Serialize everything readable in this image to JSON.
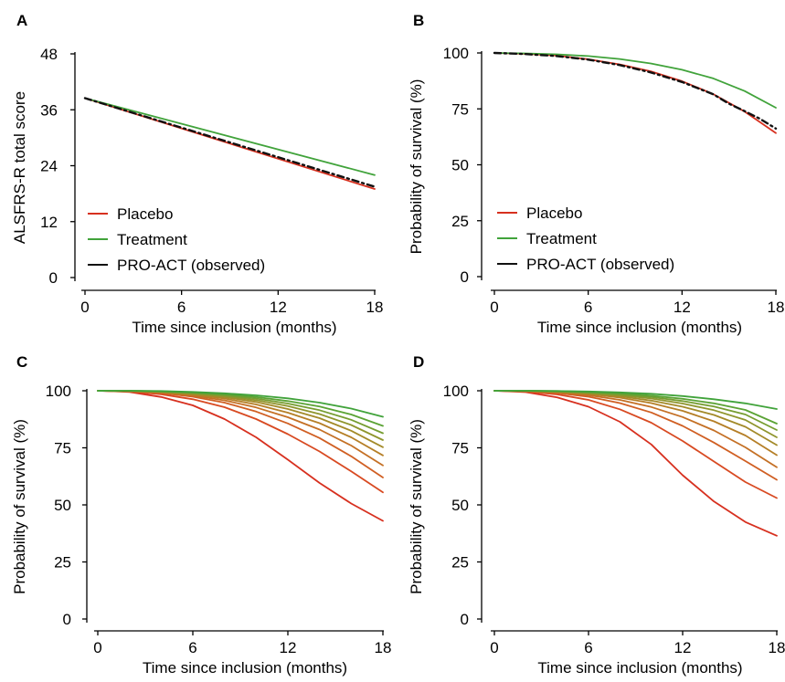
{
  "chart_data": [
    {
      "panel": "A",
      "type": "line",
      "xlabel": "Time since inclusion (months)",
      "ylabel": "ALSFRS-R total score",
      "xlim": [
        0,
        18
      ],
      "ylim": [
        0,
        48
      ],
      "xticks": [
        0,
        6,
        12,
        18
      ],
      "yticks": [
        0,
        12,
        24,
        36,
        48
      ],
      "legend": "bottom-left",
      "series": [
        {
          "name": "Placebo",
          "color": "#d7301f",
          "dash": "",
          "x": [
            0,
            18
          ],
          "y": [
            38.5,
            19.0
          ]
        },
        {
          "name": "Treatment",
          "color": "#41a33b",
          "dash": "",
          "x": [
            0,
            18
          ],
          "y": [
            38.5,
            22.0
          ]
        },
        {
          "name": "PRO-ACT (observed)",
          "color": "#111111",
          "dash": "7 4 2 4",
          "x": [
            0,
            18
          ],
          "y": [
            38.5,
            19.5
          ]
        }
      ]
    },
    {
      "panel": "B",
      "type": "line",
      "xlabel": "Time since inclusion (months)",
      "ylabel": "Probability of survival (%)",
      "xlim": [
        0,
        18
      ],
      "ylim": [
        0,
        100
      ],
      "xticks": [
        0,
        6,
        12,
        18
      ],
      "yticks": [
        0,
        25,
        50,
        75,
        100
      ],
      "legend": "bottom-left",
      "series": [
        {
          "name": "Placebo",
          "color": "#d7301f",
          "dash": "",
          "x": [
            0,
            2,
            4,
            6,
            8,
            10,
            12,
            14,
            16,
            18
          ],
          "y": [
            100,
            99.6,
            98.8,
            97.2,
            94.9,
            91.8,
            87.4,
            81.6,
            73.8,
            64.2
          ]
        },
        {
          "name": "Treatment",
          "color": "#41a33b",
          "dash": "",
          "x": [
            0,
            2,
            4,
            6,
            8,
            10,
            12,
            14,
            16,
            18
          ],
          "y": [
            100,
            99.8,
            99.4,
            98.6,
            97.3,
            95.3,
            92.5,
            88.6,
            83.0,
            75.5
          ]
        },
        {
          "name": "PRO-ACT (observed)",
          "color": "#111111",
          "dash": "7 4 2 4",
          "x": [
            0,
            2,
            4,
            6,
            8,
            10,
            12,
            14,
            15,
            16,
            17,
            18
          ],
          "y": [
            100,
            99.5,
            98.6,
            97.0,
            94.6,
            91.3,
            87.0,
            81.5,
            77.3,
            74.0,
            70.5,
            66.2
          ]
        }
      ]
    },
    {
      "panel": "C",
      "type": "line",
      "xlabel": "Time since inclusion (months)",
      "ylabel": "Probability of survival (%)",
      "xlim": [
        0,
        18
      ],
      "ylim": [
        0,
        100
      ],
      "xticks": [
        0,
        6,
        12,
        18
      ],
      "yticks": [
        0,
        25,
        50,
        75,
        100
      ],
      "series": [
        {
          "color": "#d7301f",
          "x": [
            0,
            2,
            4,
            6,
            8,
            10,
            12,
            14,
            16,
            18
          ],
          "y": [
            100,
            99.5,
            97.3,
            93.6,
            87.6,
            79.6,
            69.8,
            59.6,
            50.6,
            43.0
          ]
        },
        {
          "color": "#d84a22",
          "x": [
            0,
            2,
            4,
            6,
            8,
            10,
            12,
            14,
            16,
            18
          ],
          "y": [
            100,
            99.7,
            98.5,
            96.3,
            92.8,
            87.6,
            81.0,
            73.4,
            64.7,
            55.5
          ]
        },
        {
          "color": "#d05f23",
          "x": [
            0,
            2,
            4,
            6,
            8,
            10,
            12,
            14,
            16,
            18
          ],
          "y": [
            100,
            99.8,
            99.0,
            97.4,
            94.8,
            90.9,
            85.7,
            79.3,
            71.3,
            62.0
          ]
        },
        {
          "color": "#c47025",
          "x": [
            0,
            2,
            4,
            6,
            8,
            10,
            12,
            14,
            16,
            18
          ],
          "y": [
            100,
            99.8,
            99.2,
            97.9,
            95.8,
            92.7,
            88.4,
            83.0,
            76.0,
            67.3
          ]
        },
        {
          "color": "#b57f27",
          "x": [
            0,
            2,
            4,
            6,
            8,
            10,
            12,
            14,
            16,
            18
          ],
          "y": [
            100,
            99.9,
            99.4,
            98.3,
            96.6,
            94.0,
            90.4,
            85.8,
            79.6,
            71.7
          ]
        },
        {
          "color": "#a38a29",
          "x": [
            0,
            2,
            4,
            6,
            8,
            10,
            12,
            14,
            16,
            18
          ],
          "y": [
            100,
            99.9,
            99.5,
            98.6,
            97.2,
            95.1,
            92.0,
            88.0,
            82.5,
            75.3
          ]
        },
        {
          "color": "#8f952d",
          "x": [
            0,
            2,
            4,
            6,
            8,
            10,
            12,
            14,
            16,
            18
          ],
          "y": [
            100,
            99.9,
            99.6,
            98.9,
            97.7,
            95.9,
            93.3,
            89.8,
            85.0,
            78.4
          ]
        },
        {
          "color": "#769d31",
          "x": [
            0,
            2,
            4,
            6,
            8,
            10,
            12,
            14,
            16,
            18
          ],
          "y": [
            100,
            100,
            99.7,
            99.1,
            98.1,
            96.6,
            94.4,
            91.5,
            87.3,
            81.4
          ]
        },
        {
          "color": "#5ba335",
          "x": [
            0,
            2,
            4,
            6,
            8,
            10,
            12,
            14,
            16,
            18
          ],
          "y": [
            100,
            100,
            99.8,
            99.3,
            98.5,
            97.3,
            95.5,
            93.1,
            89.6,
            84.6
          ]
        },
        {
          "color": "#41a33b",
          "x": [
            0,
            2,
            4,
            6,
            8,
            10,
            12,
            14,
            16,
            18
          ],
          "y": [
            100,
            100,
            99.9,
            99.5,
            98.9,
            98.0,
            96.7,
            94.8,
            92.2,
            88.6
          ]
        }
      ]
    },
    {
      "panel": "D",
      "type": "line",
      "xlabel": "Time since inclusion (months)",
      "ylabel": "Probability of survival (%)",
      "xlim": [
        0,
        18
      ],
      "ylim": [
        0,
        100
      ],
      "xticks": [
        0,
        6,
        12,
        18
      ],
      "yticks": [
        0,
        25,
        50,
        75,
        100
      ],
      "series": [
        {
          "color": "#d7301f",
          "x": [
            0,
            2,
            4,
            6,
            8,
            10,
            12,
            14,
            16,
            18
          ],
          "y": [
            100,
            99.4,
            97.1,
            93.0,
            86.4,
            76.5,
            63.0,
            51.5,
            42.5,
            36.5
          ]
        },
        {
          "color": "#d84a22",
          "x": [
            0,
            2,
            4,
            6,
            8,
            10,
            12,
            14,
            16,
            18
          ],
          "y": [
            100,
            99.7,
            98.4,
            96.0,
            91.9,
            86.0,
            78.0,
            69.0,
            60.0,
            53.0
          ]
        },
        {
          "color": "#d05f23",
          "x": [
            0,
            2,
            4,
            6,
            8,
            10,
            12,
            14,
            16,
            18
          ],
          "y": [
            100,
            99.8,
            99.0,
            97.4,
            94.6,
            90.5,
            84.6,
            77.3,
            69.2,
            61.0
          ]
        },
        {
          "color": "#c47025",
          "x": [
            0,
            2,
            4,
            6,
            8,
            10,
            12,
            14,
            16,
            18
          ],
          "y": [
            100,
            99.8,
            99.3,
            98.1,
            96.0,
            92.9,
            88.5,
            82.6,
            75.2,
            66.5
          ]
        },
        {
          "color": "#b57f27",
          "x": [
            0,
            2,
            4,
            6,
            8,
            10,
            12,
            14,
            16,
            18
          ],
          "y": [
            100,
            99.9,
            99.5,
            98.6,
            97.0,
            94.6,
            91.2,
            86.6,
            80.4,
            71.8
          ]
        },
        {
          "color": "#a38a29",
          "x": [
            0,
            2,
            4,
            6,
            8,
            10,
            12,
            14,
            16,
            18
          ],
          "y": [
            100,
            99.9,
            99.6,
            98.9,
            97.6,
            95.7,
            93.0,
            89.4,
            84.2,
            76.2
          ]
        },
        {
          "color": "#8f952d",
          "x": [
            0,
            2,
            4,
            6,
            8,
            10,
            12,
            14,
            16,
            18
          ],
          "y": [
            100,
            100,
            99.7,
            99.1,
            98.1,
            96.6,
            94.4,
            91.5,
            87.2,
            79.6
          ]
        },
        {
          "color": "#769d31",
          "x": [
            0,
            2,
            4,
            6,
            8,
            10,
            12,
            14,
            16,
            18
          ],
          "y": [
            100,
            100,
            99.8,
            99.3,
            98.5,
            97.3,
            95.5,
            93.1,
            89.6,
            82.8
          ]
        },
        {
          "color": "#5ba335",
          "x": [
            0,
            2,
            4,
            6,
            8,
            10,
            12,
            14,
            16,
            18
          ],
          "y": [
            100,
            100,
            99.9,
            99.5,
            98.9,
            97.9,
            96.5,
            94.5,
            91.6,
            85.6
          ]
        },
        {
          "color": "#41a33b",
          "x": [
            0,
            2,
            4,
            6,
            8,
            10,
            12,
            14,
            16,
            18
          ],
          "y": [
            100,
            100,
            99.9,
            99.7,
            99.3,
            98.7,
            97.7,
            96.3,
            94.5,
            92.0
          ]
        }
      ]
    }
  ]
}
